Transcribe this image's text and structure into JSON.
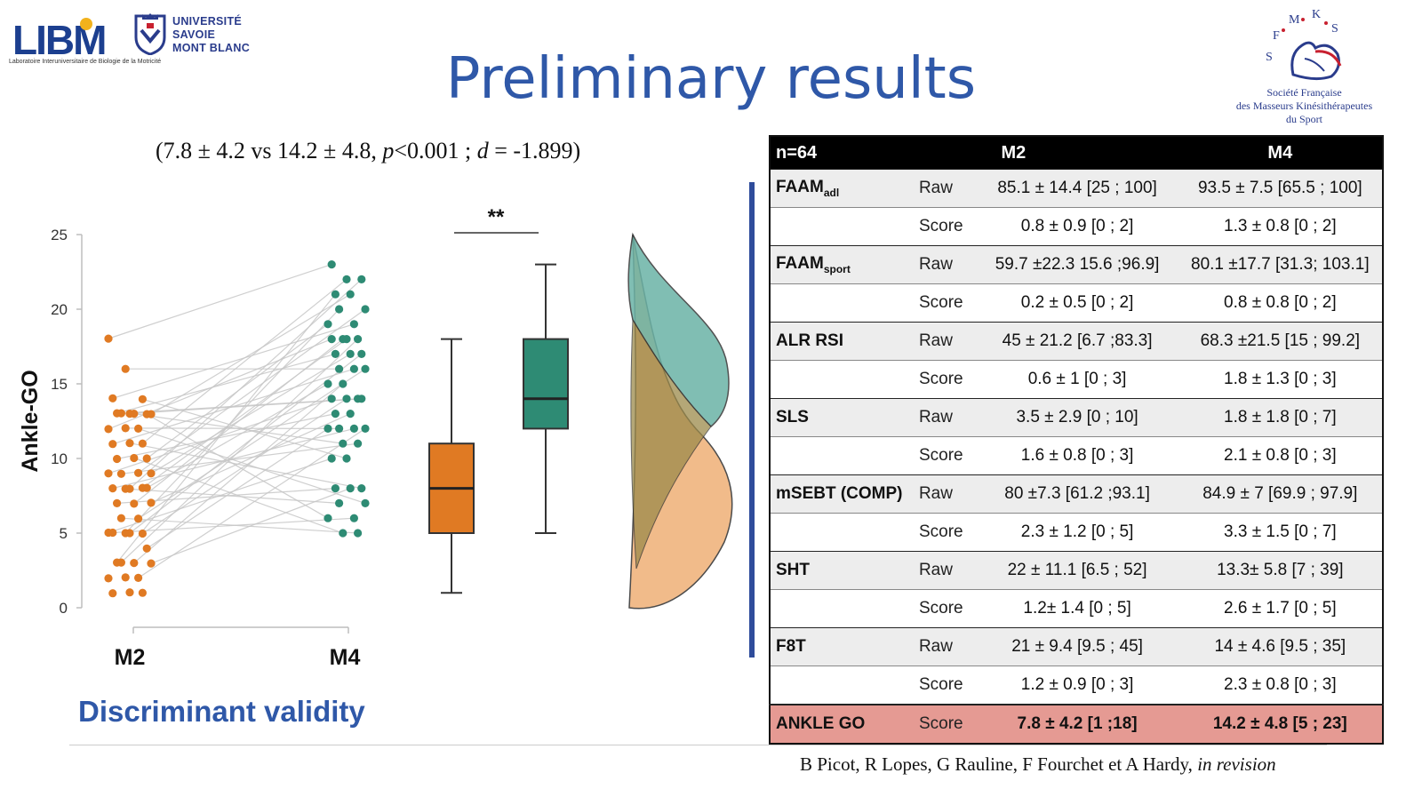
{
  "logos": {
    "libm": {
      "text": "LIBM",
      "subtitle": "Laboratoire Interuniversitaire de Biologie de la Motricité"
    },
    "usmb": {
      "line1": "UNIVERSITÉ",
      "line2": "SAVOIE",
      "line3": "MONT BLANC"
    },
    "sfmks": {
      "letters": [
        "S",
        "F",
        "M",
        "K",
        "S"
      ],
      "line1": "Société Française",
      "line2": "des Masseurs Kinésithérapeutes",
      "line3": "du Sport"
    }
  },
  "title": "Preliminary results",
  "stats": {
    "open": "(7.8 ± 4.2 vs 14.2 ± 4.8, ",
    "p": "p",
    "p_val": "<0.001 ; ",
    "d": "d",
    "d_val": " = -1.899)"
  },
  "chart_data": {
    "type": "scatter",
    "ylabel": "Ankle-GO",
    "ylim": [
      0,
      25
    ],
    "yticks": [
      "0",
      "5",
      "10",
      "15",
      "20",
      "25"
    ],
    "categories": [
      "M2",
      "M4"
    ],
    "significance": "**",
    "series": [
      {
        "name": "M2",
        "color": "#e07a23",
        "values": [
          18,
          16,
          14,
          14,
          13,
          13,
          13,
          13,
          13,
          13,
          12,
          12,
          12,
          11,
          11,
          11,
          10,
          10,
          10,
          9,
          9,
          9,
          9,
          8,
          8,
          8,
          8,
          8,
          7,
          7,
          7,
          6,
          6,
          5,
          5,
          5,
          5,
          5,
          4,
          3,
          3,
          3,
          3,
          2,
          2,
          2,
          1,
          1,
          1
        ],
        "box": {
          "min": 1,
          "q1": 5,
          "median": 8,
          "q3": 11,
          "max": 18
        }
      },
      {
        "name": "M4",
        "color": "#2e8b74",
        "values": [
          23,
          22,
          22,
          21,
          21,
          20,
          20,
          19,
          19,
          18,
          18,
          18,
          18,
          17,
          17,
          17,
          16,
          16,
          16,
          15,
          15,
          14,
          14,
          14,
          14,
          13,
          13,
          12,
          12,
          12,
          12,
          11,
          11,
          10,
          10,
          8,
          8,
          8,
          7,
          7,
          6,
          6,
          5,
          5
        ],
        "box": {
          "min": 5,
          "q1": 12,
          "median": 14,
          "q3": 18,
          "max": 23
        }
      }
    ]
  },
  "discriminant": "Discriminant validity",
  "table": {
    "header": {
      "n": "n=64",
      "col1": "M2",
      "col2": "M4"
    },
    "rows": [
      {
        "measure": "FAAM",
        "sub": "adl",
        "type": "Raw",
        "m2": "85.1 ± 14.4 [25 ; 100]",
        "m4": "93.5 ± 7.5 [65.5 ; 100]"
      },
      {
        "measure": "",
        "sub": "",
        "type": "Score",
        "m2": "0.8 ± 0.9 [0 ; 2]",
        "m4": "1.3 ± 0.8 [0 ; 2]"
      },
      {
        "measure": "FAAM",
        "sub": "sport",
        "type": "Raw",
        "m2": "59.7 ±22.3 15.6 ;96.9]",
        "m4": "80.1 ±17.7 [31.3; 103.1]"
      },
      {
        "measure": "",
        "sub": "",
        "type": "Score",
        "m2": "0.2 ± 0.5 [0 ; 2]",
        "m4": "0.8 ± 0.8 [0 ; 2]"
      },
      {
        "measure": "ALR RSI",
        "sub": "",
        "type": "Raw",
        "m2": "45 ± 21.2 [6.7 ;83.3]",
        "m4": "68.3 ±21.5 [15 ; 99.2]"
      },
      {
        "measure": "",
        "sub": "",
        "type": "Score",
        "m2": "0.6 ± 1 [0 ; 3]",
        "m4": "1.8 ± 1.3 [0 ; 3]"
      },
      {
        "measure": "SLS",
        "sub": "",
        "type": "Raw",
        "m2": "3.5 ± 2.9 [0 ; 10]",
        "m4": "1.8 ± 1.8 [0 ; 7]"
      },
      {
        "measure": "",
        "sub": "",
        "type": "Score",
        "m2": "1.6 ± 0.8 [0 ; 3]",
        "m4": "2.1 ± 0.8 [0 ; 3]"
      },
      {
        "measure": "mSEBT (COMP)",
        "sub": "",
        "type": "Raw",
        "m2": "80 ±7.3 [61.2 ;93.1]",
        "m4": "84.9 ± 7 [69.9 ; 97.9]"
      },
      {
        "measure": "",
        "sub": "",
        "type": "Score",
        "m2": "2.3 ± 1.2 [0 ; 5]",
        "m4": "3.3 ± 1.5 [0 ; 7]"
      },
      {
        "measure": "SHT",
        "sub": "",
        "type": "Raw",
        "m2": "22 ± 11.1 [6.5 ; 52]",
        "m4": "13.3± 5.8 [7 ; 39]"
      },
      {
        "measure": "",
        "sub": "",
        "type": "Score",
        "m2": "1.2± 1.4 [0 ; 5]",
        "m4": "2.6 ± 1.7 [0 ; 5]"
      },
      {
        "measure": "F8T",
        "sub": "",
        "type": "Raw",
        "m2": "21 ± 9.4 [9.5 ; 45]",
        "m4": "14 ± 4.6 [9.5 ; 35]"
      },
      {
        "measure": "",
        "sub": "",
        "type": "Score",
        "m2": "1.2 ± 0.9 [0 ; 3]",
        "m4": "2.3 ± 0.8 [0 ; 3]"
      },
      {
        "measure": "ANKLE GO",
        "sub": "",
        "type": "Score",
        "m2": "7.8 ± 4.2 [1 ;18]",
        "m4": "14.2 ± 4.8 [5 ; 23]"
      }
    ]
  },
  "citation": {
    "authors": "B Picot, R Lopes, G Rauline, F Fourchet et A Hardy, ",
    "status": "in revision"
  }
}
